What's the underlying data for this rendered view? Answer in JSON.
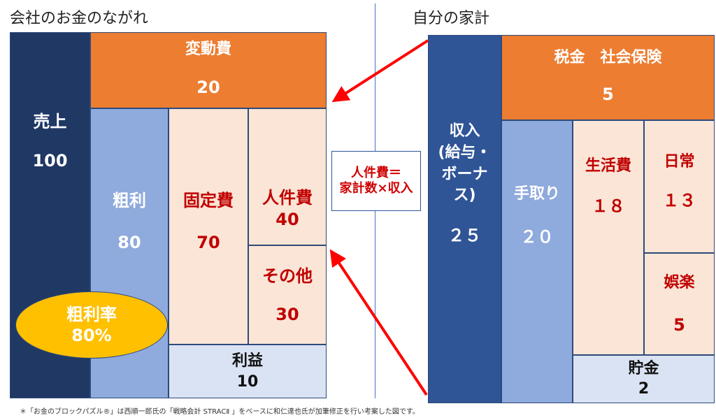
{
  "left_title": "会社のお金のながれ",
  "right_title": "自分の家計",
  "company": {
    "sales": {
      "label": "売上",
      "value": "100"
    },
    "variable": {
      "label": "変動費",
      "value": "20"
    },
    "gross": {
      "label": "粗利",
      "value": "80"
    },
    "fixed": {
      "label": "固定費",
      "value": "70"
    },
    "personnel": {
      "label": "人件費",
      "value": "40"
    },
    "other": {
      "label": "その他",
      "value": "30"
    },
    "profit": {
      "label": "利益",
      "value": "10"
    },
    "margin": {
      "label": "粗利率",
      "value": "80%"
    }
  },
  "note": {
    "line1": "人件費＝",
    "line2": "家計数×収入"
  },
  "household": {
    "income": {
      "line1": "収入",
      "line2": "(給与・",
      "line3": "ボーナ",
      "line4": "ス)",
      "value": "２５"
    },
    "tax": {
      "label": "税金　社会保険",
      "value": "5"
    },
    "takehome": {
      "label": "手取り",
      "value": "２０"
    },
    "living": {
      "label": "生活費",
      "value": "１８"
    },
    "daily": {
      "label": "日常",
      "value": "１３"
    },
    "fun": {
      "label": "娯楽",
      "value": "5"
    },
    "savings": {
      "label": "貯金",
      "value": "2"
    }
  },
  "footnote": "＊「お金のブロックパズル®」は西順一郎氏の「戦略会計 STRACⅡ 」をベースに和仁達也氏が加筆修正を行い考案した図です。",
  "colors": {
    "navy": "#1f3864",
    "blue": "#2f5597",
    "orange": "#ed7d31",
    "lightblue": "#8faadc",
    "peach": "#fbe5d6",
    "pale": "#dae3f3",
    "gold": "#ffc000",
    "red": "#ff0000"
  }
}
